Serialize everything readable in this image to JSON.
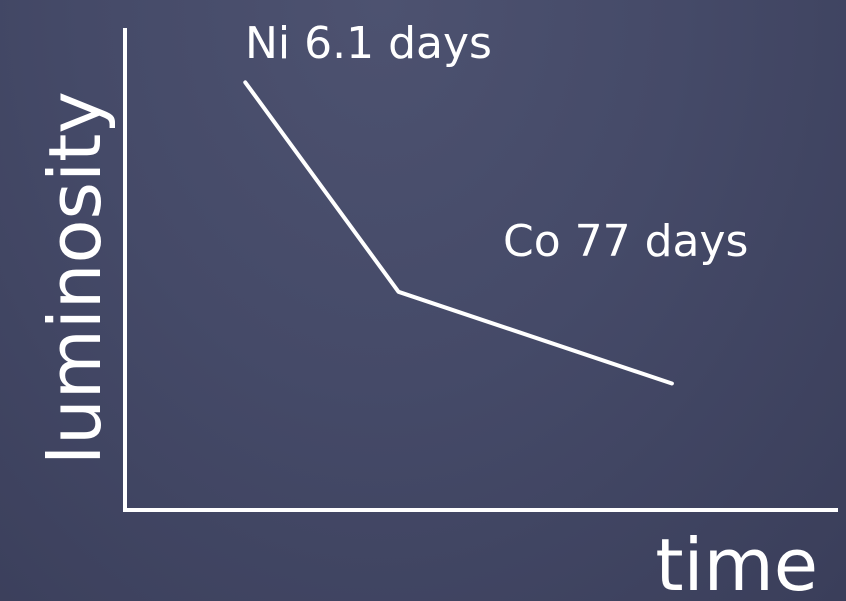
{
  "chart_data": {
    "type": "line",
    "title": "",
    "xlabel": "time",
    "ylabel": "luminosity",
    "series": [
      {
        "x": [
          0.22,
          0.5,
          1.0
        ],
        "y": [
          0.98,
          0.5,
          0.29
        ],
        "stroke": "#ffffff"
      }
    ],
    "xlim": [
      0,
      1.3
    ],
    "ylim": [
      0,
      1.1
    ],
    "grid": false,
    "annotations": [
      {
        "text": "Ni 6.1 days"
      },
      {
        "text": "Co 77 days"
      }
    ]
  },
  "colors": {
    "background": "#454a68",
    "foreground": "#ffffff"
  }
}
